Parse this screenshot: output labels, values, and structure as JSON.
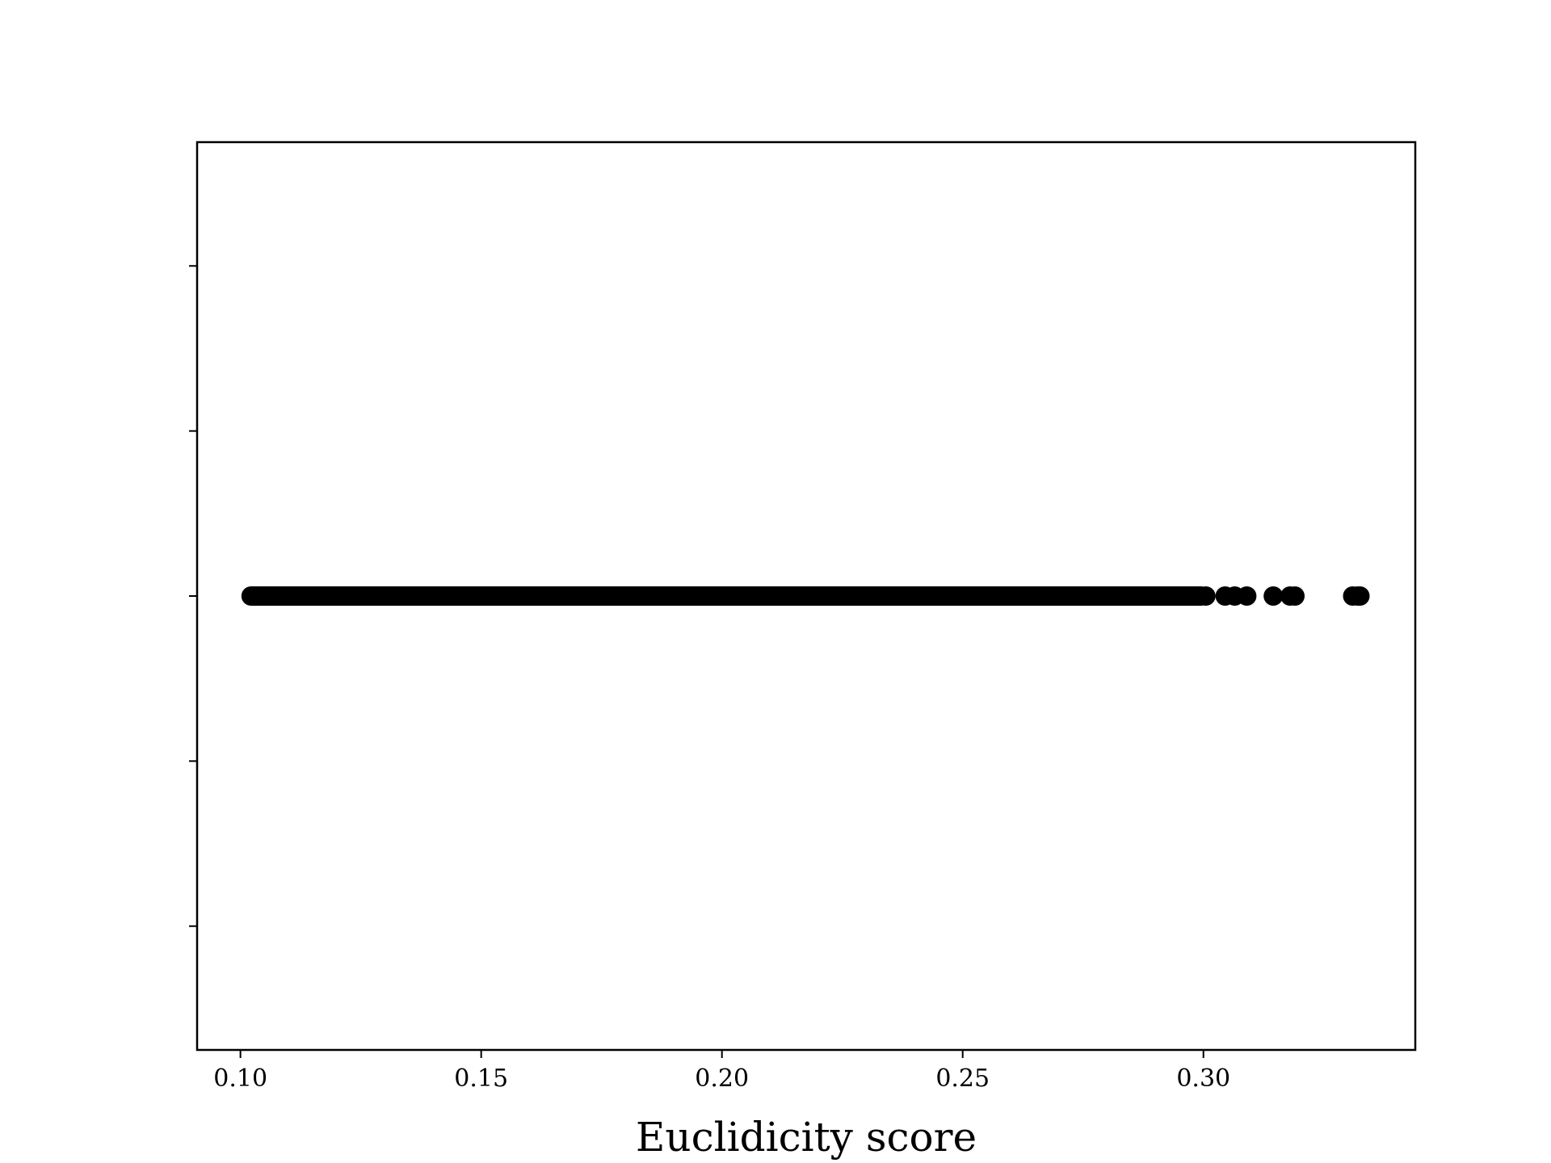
{
  "chart_data": {
    "type": "scatter",
    "title": "",
    "xlabel": "Euclidicity score",
    "ylabel": "",
    "xlim": [
      0.091,
      0.344
    ],
    "ylim": [
      -0.055,
      0.055
    ],
    "grid": false,
    "x_ticks": [
      {
        "value": 0.1,
        "label": "0.10"
      },
      {
        "value": 0.15,
        "label": "0.15"
      },
      {
        "value": 0.2,
        "label": "0.20"
      },
      {
        "value": 0.25,
        "label": "0.25"
      },
      {
        "value": 0.3,
        "label": "0.30"
      }
    ],
    "y_ticks": [
      0.04,
      0.02,
      0.0,
      -0.02,
      -0.04
    ],
    "marker_color": "#000000",
    "series": [
      {
        "x": [
          0.1022,
          0.1048,
          0.1072,
          0.109,
          0.1112,
          0.1135,
          0.116,
          0.1185,
          0.121,
          0.124,
          0.127,
          0.13,
          0.133,
          0.136,
          0.139,
          0.142,
          0.145,
          0.148,
          0.151,
          0.154,
          0.157,
          0.16,
          0.164,
          0.168,
          0.172,
          0.176,
          0.18,
          0.184,
          0.188,
          0.192,
          0.196,
          0.2,
          0.204,
          0.208,
          0.212,
          0.216,
          0.22,
          0.224,
          0.228,
          0.232,
          0.236,
          0.24,
          0.244,
          0.248,
          0.252,
          0.256,
          0.26,
          0.264,
          0.268,
          0.272,
          0.276,
          0.28,
          0.283,
          0.286,
          0.288,
          0.2905,
          0.293,
          0.2955,
          0.2975,
          0.2995,
          0.3005,
          0.3045,
          0.3065,
          0.309,
          0.3145,
          0.318,
          0.319,
          0.331,
          0.332,
          0.3325
        ],
        "y": [
          0,
          0,
          0,
          0,
          0,
          0,
          0,
          0,
          0,
          0,
          0,
          0,
          0,
          0,
          0,
          0,
          0,
          0,
          0,
          0,
          0,
          0,
          0,
          0,
          0,
          0,
          0,
          0,
          0,
          0,
          0,
          0,
          0,
          0,
          0,
          0,
          0,
          0,
          0,
          0,
          0,
          0,
          0,
          0,
          0,
          0,
          0,
          0,
          0,
          0,
          0,
          0,
          0,
          0,
          0,
          0,
          0,
          0,
          0,
          0,
          0,
          0,
          0,
          0,
          0,
          0,
          0,
          0,
          0,
          0
        ]
      }
    ]
  }
}
